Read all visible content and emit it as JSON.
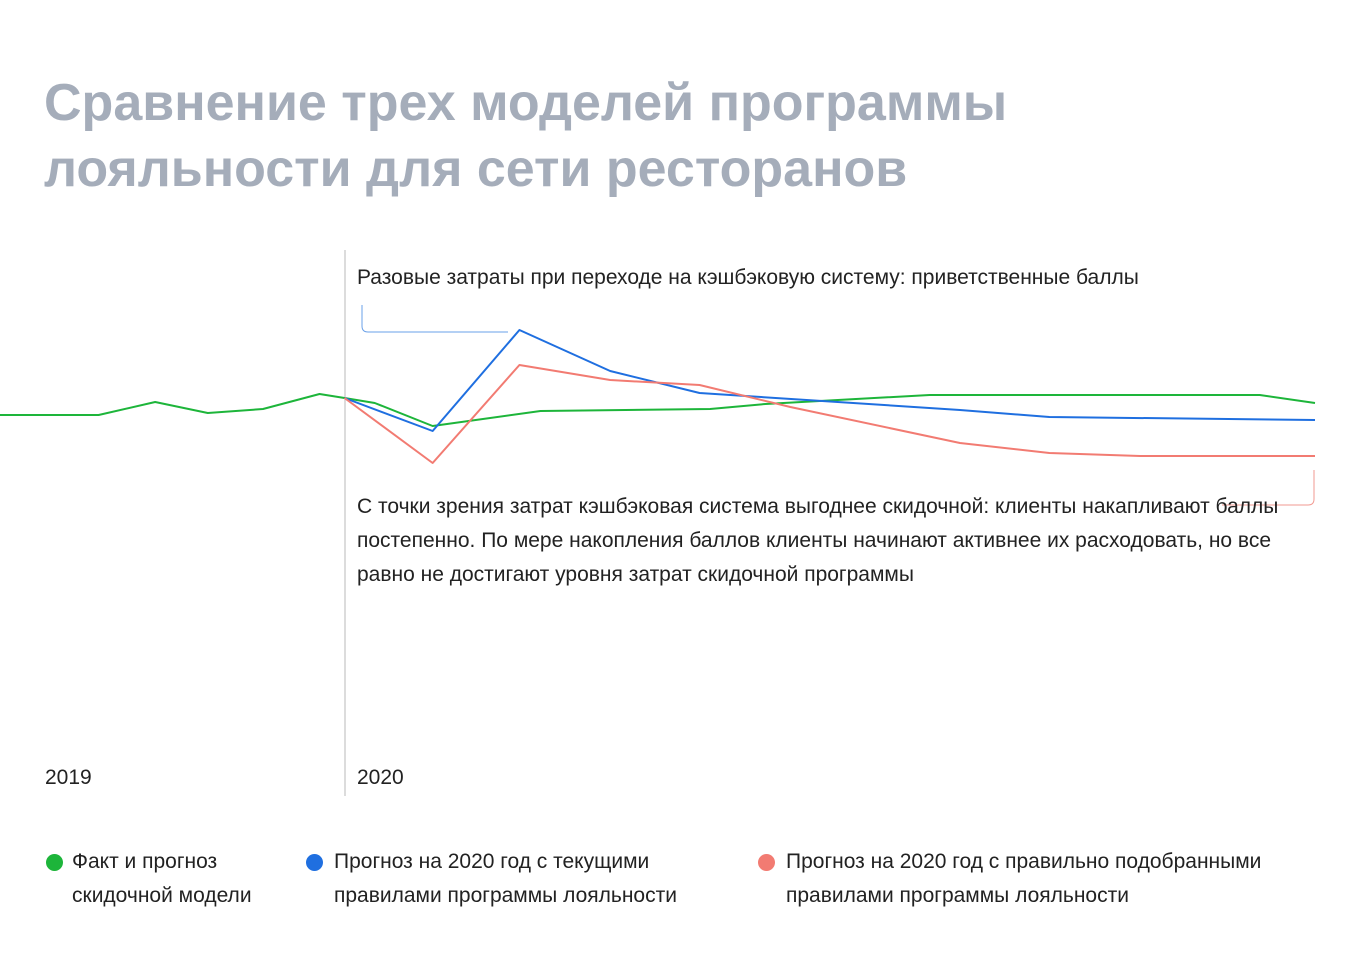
{
  "chart_data": {
    "type": "line",
    "title": "Сравнение трех моделей программы лояльности для сети ресторанов",
    "annotations": [
      "Разовые затраты при переходе на кэшбэковую систему: приветственные баллы",
      "С точки зрения затрат кэшбэковая система выгоднее скидочной: клиенты накапливают баллы постепенно. По мере накопления баллов клиенты начинают активнее их расходовать, но все равно не достигают уровня затрат скидочной программы"
    ],
    "period_labels": [
      "2019",
      "2020"
    ],
    "xlim": [
      0,
      100
    ],
    "ylim": [
      0,
      100
    ],
    "series": [
      {
        "name": "Факт и прогноз скидочной модели",
        "color": "#1db53a",
        "x": [
          0,
          7.5,
          11.8,
          15.8,
          20,
          24.3,
          26.2,
          28.5,
          32.9,
          41.1,
          54,
          58.2,
          70.7,
          95.8,
          100
        ],
        "values": [
          42.5,
          42.5,
          49,
          43.5,
          45.5,
          53,
          51,
          48.5,
          37,
          44.5,
          45.5,
          48,
          52.5,
          52.5,
          48.5
        ]
      },
      {
        "name": "Прогноз на 2020 год с текущими правилами программы лояльности",
        "color": "#1f6fe0",
        "x": [
          26.2,
          32.9,
          39.5,
          46.4,
          53.2,
          73,
          79.8,
          100
        ],
        "values": [
          51,
          34.5,
          85,
          64.5,
          53.5,
          45,
          41.5,
          40
        ]
      },
      {
        "name": "Прогноз на 2020 год с правильно подобранными правилами программы лояльности",
        "color": "#f27b72",
        "x": [
          26.2,
          32.9,
          39.5,
          46.4,
          53.2,
          60.1,
          73,
          79.8,
          86.7,
          100
        ],
        "values": [
          51,
          18.5,
          67.5,
          60,
          57.5,
          46.5,
          28.5,
          23.5,
          22,
          22
        ]
      }
    ]
  }
}
